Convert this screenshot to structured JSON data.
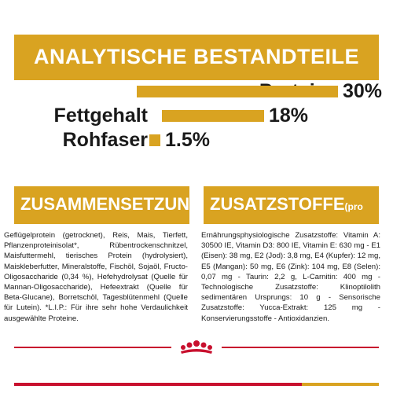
{
  "analysis": {
    "title": "ANALYTISCHE BESTANDTEILE",
    "rows": [
      {
        "label": "Protein",
        "value": "30%"
      },
      {
        "label": "Fettgehalt",
        "value": "18%"
      },
      {
        "label": "Rohfaser",
        "value": "1.5%"
      }
    ]
  },
  "composition": {
    "title": "ZUSAMMENSETZUNG",
    "text": "Geflügelprotein (getrocknet), Reis, Mais, Tierfett, Pflanzenproteinisolat*, Rübentrockenschnitzel, Maisfuttermehl, tierisches Protein (hydrolysiert), Maiskleberfutter, Mineralstoffe, Fischöl, Sojaöl, Fructo-Oligosaccharide (0,34 %), Hefehydrolysat (Quelle für Mannan-Oligosaccharide), Hefeextrakt (Quelle für Beta-Glucane), Borretschöl, Tagesblütenmehl (Quelle für Lutein). *L.I.P.: Für ihre sehr hohe Verdaulichkeit ausgewählte Proteine."
  },
  "additives": {
    "title": "ZUSATZSTOFFE",
    "unit": "(pro kg)",
    "text": "Ernährungsphysiologische Zusatzstoffe: Vitamin A: 30500 IE, Vitamin D3: 800 IE, Vitamin E: 630 mg - E1 (Eisen): 38 mg, E2 (Jod): 3,8 mg, E4 (Kupfer): 12 mg, E5 (Mangan): 50 mg, E6 (Zink): 104 mg, E8 (Selen): 0,07 mg - Taurin: 2,2 g, L-Carnitin: 400 mg - Technologische Zusatzstoffe: Klinoptilolith sedimentären Ursprungs: 10 g - Sensorische Zusatzstoffe: Yucca-Extrakt: 125 mg - Konservierungsstoffe - Antioxidanzien."
  },
  "icons": {
    "logo": "royal-canin-crown-logo"
  },
  "colors": {
    "gold": "#d9a321",
    "red": "#c8102e"
  }
}
